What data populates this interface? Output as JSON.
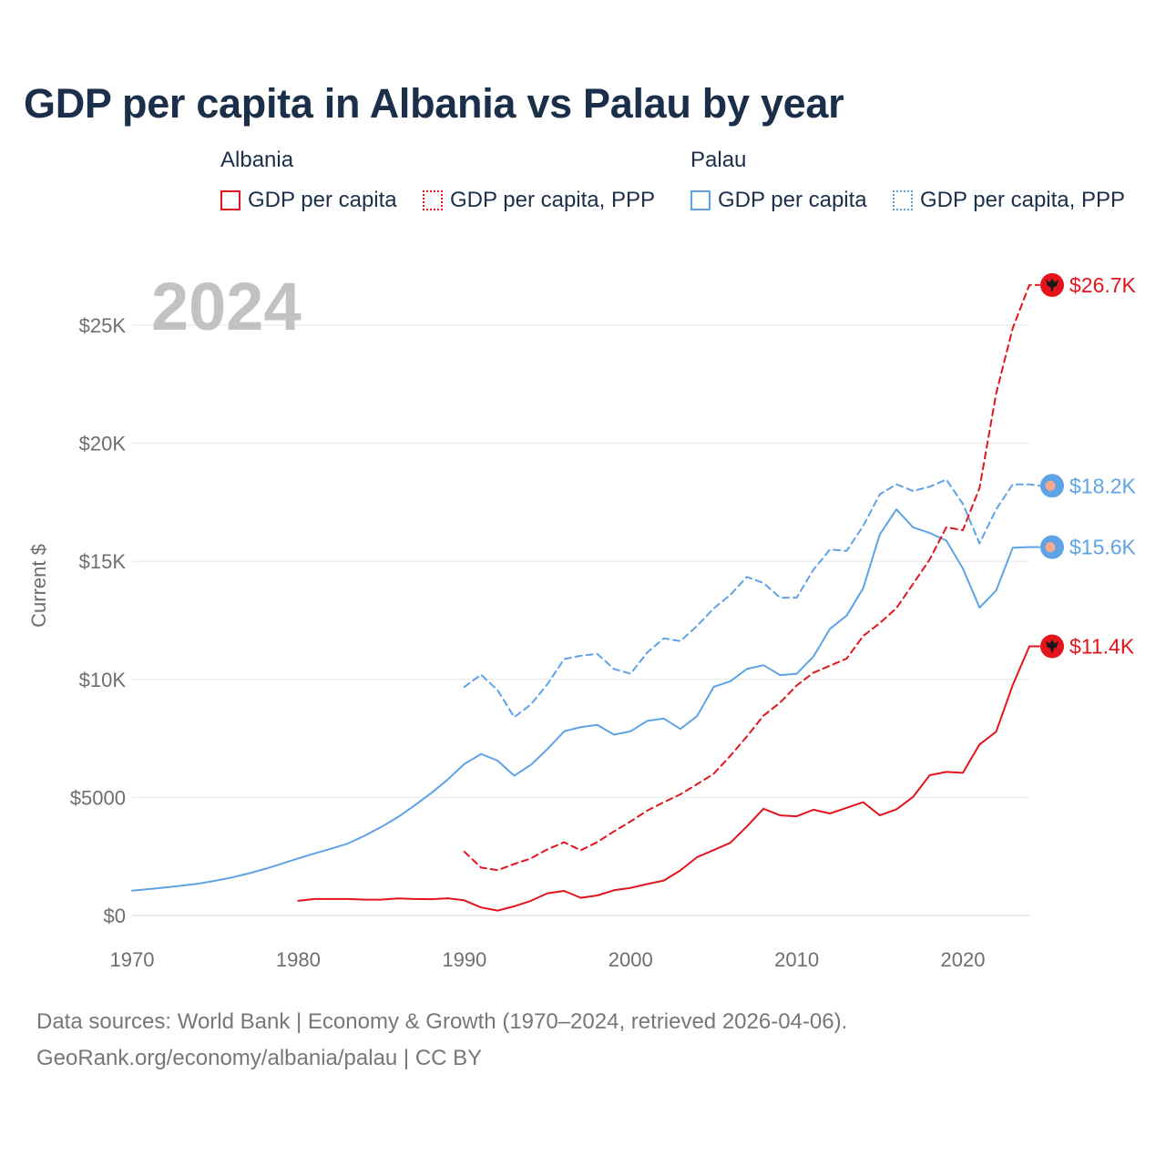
{
  "title": "GDP per capita in Albania vs Palau by year",
  "legend": {
    "groups": [
      {
        "name": "Albania",
        "color": "#e3141b",
        "items": [
          {
            "label": "GDP per capita",
            "style": "solid"
          },
          {
            "label": "GDP per capita, PPP",
            "style": "dotted"
          }
        ]
      },
      {
        "name": "Palau",
        "color": "#5ea3e6",
        "items": [
          {
            "label": "GDP per capita",
            "style": "solid"
          },
          {
            "label": "GDP per capita, PPP",
            "style": "dotted"
          }
        ]
      }
    ]
  },
  "source": {
    "line1": "Data sources: World Bank | Economy & Growth (1970–2024, retrieved 2026-04-06).",
    "line2": "GeoRank.org/economy/albania/palau | CC BY"
  },
  "chart_data": {
    "type": "line",
    "title": "GDP per capita in Albania vs Palau by year",
    "year_label": "2024",
    "xlabel": "",
    "ylabel": "Current $",
    "xlim": [
      1970,
      2024
    ],
    "ylim": [
      0,
      27500
    ],
    "x_ticks": [
      1970,
      1980,
      1990,
      2000,
      2010,
      2020
    ],
    "x_tick_labels": [
      "1970",
      "1980",
      "1990",
      "2000",
      "2010",
      "2020"
    ],
    "y_ticks": [
      0,
      5000,
      10000,
      15000,
      20000,
      25000
    ],
    "y_tick_labels": [
      "$0",
      "$5000",
      "$10K",
      "$15K",
      "$20K",
      "$25K"
    ],
    "grid": true,
    "series": [
      {
        "name": "Palau GDP per capita",
        "country": "Palau",
        "color": "#5ea3e6",
        "dash": "solid",
        "end_label": "$15.6K",
        "end_value": 15600,
        "points": [
          [
            1970,
            1050
          ],
          [
            1971,
            1120
          ],
          [
            1972,
            1190
          ],
          [
            1973,
            1260
          ],
          [
            1974,
            1350
          ],
          [
            1975,
            1470
          ],
          [
            1976,
            1610
          ],
          [
            1977,
            1780
          ],
          [
            1978,
            1970
          ],
          [
            1979,
            2190
          ],
          [
            1980,
            2420
          ],
          [
            1981,
            2630
          ],
          [
            1982,
            2830
          ],
          [
            1983,
            3050
          ],
          [
            1984,
            3380
          ],
          [
            1985,
            3750
          ],
          [
            1986,
            4170
          ],
          [
            1987,
            4660
          ],
          [
            1988,
            5180
          ],
          [
            1989,
            5760
          ],
          [
            1990,
            6420
          ],
          [
            1991,
            6840
          ],
          [
            1992,
            6560
          ],
          [
            1993,
            5920
          ],
          [
            1994,
            6380
          ],
          [
            1995,
            7050
          ],
          [
            1996,
            7800
          ],
          [
            1997,
            7980
          ],
          [
            1998,
            8070
          ],
          [
            1999,
            7660
          ],
          [
            2000,
            7800
          ],
          [
            2001,
            8240
          ],
          [
            2002,
            8340
          ],
          [
            2003,
            7900
          ],
          [
            2004,
            8440
          ],
          [
            2005,
            9680
          ],
          [
            2006,
            9920
          ],
          [
            2007,
            10440
          ],
          [
            2008,
            10600
          ],
          [
            2009,
            10180
          ],
          [
            2010,
            10240
          ],
          [
            2011,
            10960
          ],
          [
            2012,
            12140
          ],
          [
            2013,
            12700
          ],
          [
            2014,
            13860
          ],
          [
            2015,
            16140
          ],
          [
            2016,
            17200
          ],
          [
            2017,
            16440
          ],
          [
            2018,
            16200
          ],
          [
            2019,
            15880
          ],
          [
            2020,
            14700
          ],
          [
            2021,
            13040
          ],
          [
            2022,
            13760
          ],
          [
            2023,
            15580
          ],
          [
            2024,
            15600
          ]
        ]
      },
      {
        "name": "Palau GDP per capita, PPP",
        "country": "Palau",
        "color": "#5ea3e6",
        "dash": "dashed",
        "end_label": "$18.2K",
        "end_value": 18200,
        "points": [
          [
            1990,
            9680
          ],
          [
            1991,
            10200
          ],
          [
            1992,
            9540
          ],
          [
            1993,
            8400
          ],
          [
            1994,
            8940
          ],
          [
            1995,
            9800
          ],
          [
            1996,
            10860
          ],
          [
            1997,
            11000
          ],
          [
            1998,
            11080
          ],
          [
            1999,
            10440
          ],
          [
            2000,
            10240
          ],
          [
            2001,
            11140
          ],
          [
            2002,
            11740
          ],
          [
            2003,
            11620
          ],
          [
            2004,
            12260
          ],
          [
            2005,
            13000
          ],
          [
            2006,
            13580
          ],
          [
            2007,
            14340
          ],
          [
            2008,
            14080
          ],
          [
            2009,
            13460
          ],
          [
            2010,
            13460
          ],
          [
            2011,
            14640
          ],
          [
            2012,
            15500
          ],
          [
            2013,
            15440
          ],
          [
            2014,
            16500
          ],
          [
            2015,
            17840
          ],
          [
            2016,
            18260
          ],
          [
            2017,
            17980
          ],
          [
            2018,
            18160
          ],
          [
            2019,
            18460
          ],
          [
            2020,
            17440
          ],
          [
            2021,
            15760
          ],
          [
            2022,
            17200
          ],
          [
            2023,
            18260
          ],
          [
            2024,
            18260
          ]
        ]
      },
      {
        "name": "Albania GDP per capita",
        "country": "Albania",
        "color": "#e3141b",
        "dash": "solid",
        "end_label": "$11.4K",
        "end_value": 11400,
        "points": [
          [
            1980,
            620
          ],
          [
            1981,
            700
          ],
          [
            1982,
            700
          ],
          [
            1983,
            700
          ],
          [
            1984,
            670
          ],
          [
            1985,
            670
          ],
          [
            1986,
            720
          ],
          [
            1987,
            700
          ],
          [
            1988,
            690
          ],
          [
            1989,
            730
          ],
          [
            1990,
            640
          ],
          [
            1991,
            340
          ],
          [
            1992,
            210
          ],
          [
            1993,
            390
          ],
          [
            1994,
            620
          ],
          [
            1995,
            940
          ],
          [
            1996,
            1040
          ],
          [
            1997,
            750
          ],
          [
            1998,
            850
          ],
          [
            1999,
            1070
          ],
          [
            2000,
            1170
          ],
          [
            2001,
            1330
          ],
          [
            2002,
            1480
          ],
          [
            2003,
            1910
          ],
          [
            2004,
            2470
          ],
          [
            2005,
            2770
          ],
          [
            2006,
            3080
          ],
          [
            2007,
            3770
          ],
          [
            2008,
            4520
          ],
          [
            2009,
            4240
          ],
          [
            2010,
            4200
          ],
          [
            2011,
            4480
          ],
          [
            2012,
            4320
          ],
          [
            2013,
            4560
          ],
          [
            2014,
            4800
          ],
          [
            2015,
            4240
          ],
          [
            2016,
            4500
          ],
          [
            2017,
            5020
          ],
          [
            2018,
            5940
          ],
          [
            2019,
            6080
          ],
          [
            2020,
            6040
          ],
          [
            2021,
            7240
          ],
          [
            2022,
            7780
          ],
          [
            2023,
            9760
          ],
          [
            2024,
            11400
          ]
        ]
      },
      {
        "name": "Albania GDP per capita, PPP",
        "country": "Albania",
        "color": "#e3141b",
        "dash": "dashed",
        "end_label": "$26.7K",
        "end_value": 26700,
        "points": [
          [
            1990,
            2700
          ],
          [
            1991,
            2030
          ],
          [
            1992,
            1920
          ],
          [
            1993,
            2180
          ],
          [
            1994,
            2420
          ],
          [
            1995,
            2800
          ],
          [
            1996,
            3100
          ],
          [
            1997,
            2760
          ],
          [
            1998,
            3110
          ],
          [
            1999,
            3560
          ],
          [
            2000,
            3980
          ],
          [
            2001,
            4440
          ],
          [
            2002,
            4800
          ],
          [
            2003,
            5130
          ],
          [
            2004,
            5560
          ],
          [
            2005,
            6000
          ],
          [
            2006,
            6760
          ],
          [
            2007,
            7580
          ],
          [
            2008,
            8460
          ],
          [
            2009,
            9020
          ],
          [
            2010,
            9740
          ],
          [
            2011,
            10280
          ],
          [
            2012,
            10580
          ],
          [
            2013,
            10880
          ],
          [
            2014,
            11840
          ],
          [
            2015,
            12380
          ],
          [
            2016,
            13020
          ],
          [
            2017,
            14040
          ],
          [
            2018,
            15080
          ],
          [
            2019,
            16440
          ],
          [
            2020,
            16320
          ],
          [
            2021,
            18100
          ],
          [
            2022,
            22100
          ],
          [
            2023,
            24880
          ],
          [
            2024,
            26700
          ]
        ]
      }
    ]
  }
}
